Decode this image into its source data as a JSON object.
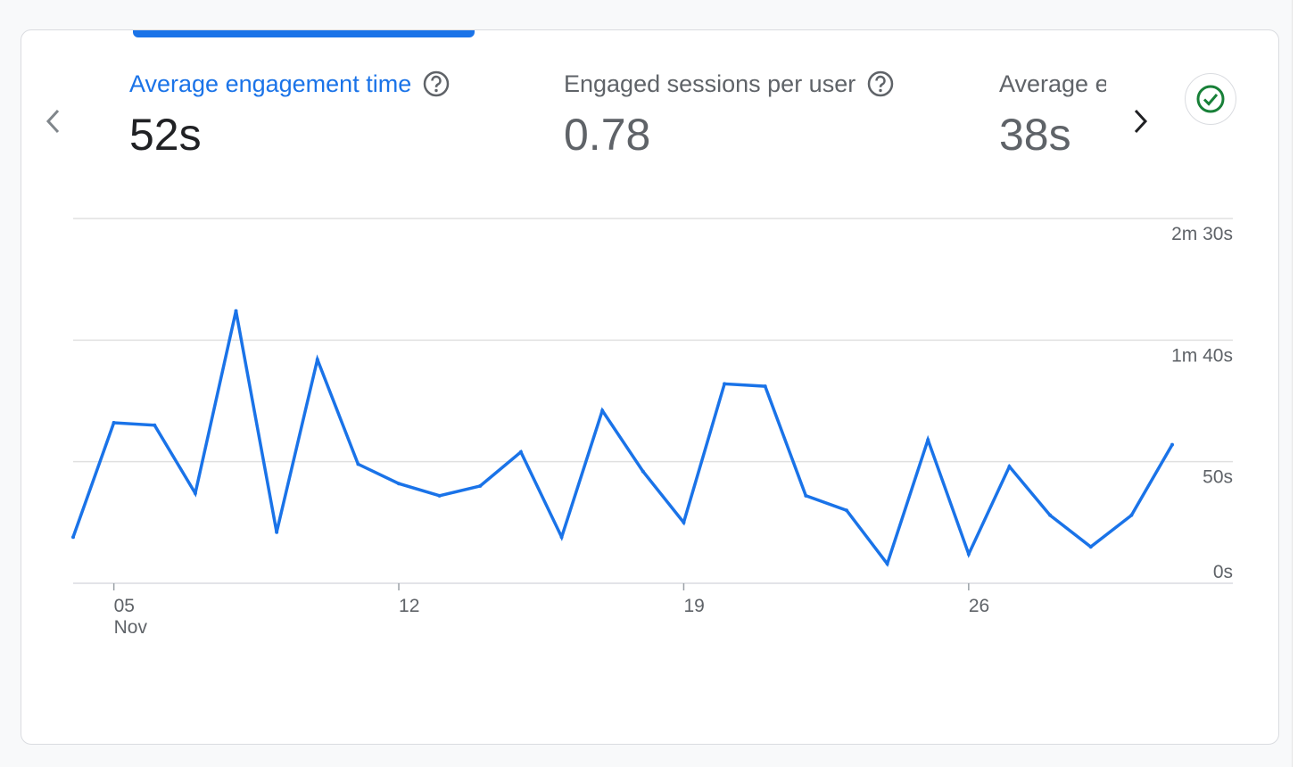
{
  "tabs": [
    {
      "title": "Average engagement time",
      "value": "52s",
      "active": true,
      "has_help": true
    },
    {
      "title": "Engaged sessions per user",
      "value": "0.78",
      "active": false,
      "has_help": true
    },
    {
      "title": "Average e",
      "value": "38s",
      "active": false,
      "has_help": false
    }
  ],
  "icons": {
    "prev": "chevron-left-icon",
    "next": "chevron-right-icon",
    "help": "help-circle-icon",
    "status": "check-circle-icon"
  },
  "colors": {
    "accent": "#1a73e8",
    "status_green": "#188038",
    "grid": "#e0e0e0",
    "text_secondary": "#5f6368"
  },
  "chart_data": {
    "type": "line",
    "title": "",
    "xlabel": "",
    "ylabel": "",
    "y_axis_side": "right",
    "grid": true,
    "ylim": [
      0,
      150
    ],
    "y_ticks": [
      {
        "value": 0,
        "label": "0s"
      },
      {
        "value": 50,
        "label": "50s"
      },
      {
        "value": 100,
        "label": "1m 40s"
      },
      {
        "value": 150,
        "label": "2m 30s"
      }
    ],
    "x_ticks": [
      {
        "day": 5,
        "label": "05",
        "sublabel": "Nov"
      },
      {
        "day": 12,
        "label": "12",
        "sublabel": ""
      },
      {
        "day": 19,
        "label": "19",
        "sublabel": ""
      },
      {
        "day": 26,
        "label": "26",
        "sublabel": ""
      }
    ],
    "x": [
      4,
      5,
      6,
      7,
      8,
      9,
      10,
      11,
      12,
      13,
      14,
      15,
      16,
      17,
      18,
      19,
      20,
      21,
      22,
      23,
      24,
      25,
      26,
      27,
      28,
      29,
      30,
      31
    ],
    "series": [
      {
        "values": [
          19,
          66,
          65,
          37,
          112,
          21,
          92,
          49,
          41,
          36,
          40,
          54,
          19,
          71,
          46,
          25,
          82,
          81,
          36,
          30,
          8,
          59,
          12,
          48,
          28,
          15,
          28,
          57
        ]
      }
    ]
  }
}
